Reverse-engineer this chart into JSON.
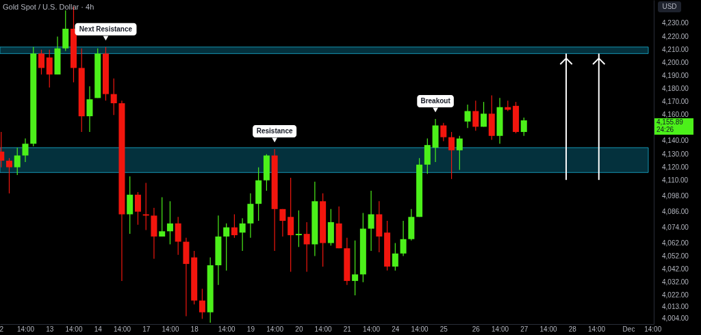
{
  "chart_data": {
    "type": "candlestick",
    "title": "Gold Spot / U.S. Dollar · 4h",
    "ylabel": "USD",
    "categories": [
      "2",
      null,
      null,
      "14:00",
      null,
      null,
      "13",
      null,
      null,
      "14:00",
      null,
      null,
      "14",
      null,
      null,
      "14:00",
      null,
      null,
      "17",
      null,
      null,
      "14:00",
      null,
      null,
      "18",
      null,
      null,
      null,
      "14:00",
      null,
      null,
      "19",
      null,
      null,
      "14:00",
      null,
      null,
      "20",
      null,
      null,
      "14:00",
      null,
      null,
      "21",
      null,
      null,
      "14:00",
      null,
      null,
      "24",
      null,
      null,
      "14:00",
      null,
      null,
      "25",
      null,
      null,
      null,
      "26",
      null,
      null,
      "14:00",
      null,
      null,
      "27",
      null,
      null,
      "14:00",
      null,
      null,
      "28",
      null,
      null,
      "14:00",
      null,
      null,
      null,
      "Dec",
      null,
      null,
      "14:00"
    ],
    "ohlc": [
      [
        4132,
        4147,
        4120,
        4125
      ],
      [
        4125,
        4127,
        4100,
        4120
      ],
      [
        4120,
        4135,
        4114,
        4129
      ],
      [
        4129,
        4142,
        4124,
        4138
      ],
      [
        4138,
        4212,
        4136,
        4207
      ],
      [
        4207,
        4210,
        4191,
        4196
      ],
      [
        4204,
        4210,
        4181,
        4191
      ],
      [
        4191,
        4220,
        4191,
        4211
      ],
      [
        4211,
        4240,
        4209,
        4226
      ],
      [
        4226,
        4243,
        4185,
        4196
      ],
      [
        4196,
        4211,
        4147,
        4159
      ],
      [
        4159,
        4182,
        4147,
        4172
      ],
      [
        4173,
        4211,
        4173,
        4207
      ],
      [
        4207,
        4212,
        4171,
        4176
      ],
      [
        4176,
        4188,
        4160,
        4169
      ],
      [
        4169,
        4171,
        4033,
        4084
      ],
      [
        4084,
        4113,
        4069,
        4099
      ],
      [
        4099,
        4101,
        4076,
        4086
      ],
      [
        4084,
        4108,
        4072,
        4083
      ],
      [
        4083,
        4089,
        4050,
        4067
      ],
      [
        4067,
        4097,
        4067,
        4071
      ],
      [
        4071,
        4094,
        4061,
        4077
      ],
      [
        4077,
        4082,
        4053,
        4063
      ],
      [
        4063,
        4066,
        4006,
        4046
      ],
      [
        4051,
        4056,
        4015,
        4018
      ],
      [
        4018,
        4027,
        4004,
        4009
      ],
      [
        4009,
        4051,
        4001,
        4045
      ],
      [
        4045,
        4083,
        4030,
        4067
      ],
      [
        4067,
        4077,
        4041,
        4074
      ],
      [
        4074,
        4084,
        4066,
        4068
      ],
      [
        4070,
        4081,
        4056,
        4077
      ],
      [
        4077,
        4100,
        4066,
        4092
      ],
      [
        4092,
        4120,
        4079,
        4110
      ],
      [
        4110,
        4130,
        4102,
        4129
      ],
      [
        4129,
        4134,
        4056,
        4088
      ],
      [
        4088,
        4088,
        4067,
        4079
      ],
      [
        4082,
        4112,
        4040,
        4068
      ],
      [
        4068,
        4087,
        4059,
        4069
      ],
      [
        4069,
        4078,
        4040,
        4061
      ],
      [
        4061,
        4109,
        4052,
        4094
      ],
      [
        4094,
        4100,
        4044,
        4062
      ],
      [
        4062,
        4088,
        4060,
        4078
      ],
      [
        4077,
        4090,
        4058,
        4058
      ],
      [
        4058,
        4066,
        4030,
        4033
      ],
      [
        4033,
        4064,
        4022,
        4038
      ],
      [
        4038,
        4085,
        4032,
        4073
      ],
      [
        4073,
        4102,
        4056,
        4084
      ],
      [
        4084,
        4094,
        4055,
        4067
      ],
      [
        4070,
        4079,
        4041,
        4044
      ],
      [
        4044,
        4062,
        4041,
        4054
      ],
      [
        4054,
        4079,
        4052,
        4065
      ],
      [
        4065,
        4088,
        4064,
        4082
      ],
      [
        4082,
        4127,
        4082,
        4122
      ],
      [
        4122,
        4142,
        4115,
        4137
      ],
      [
        4135,
        4157,
        4124,
        4152
      ],
      [
        4152,
        4154,
        4140,
        4143
      ],
      [
        4143,
        4147,
        4111,
        4133
      ],
      [
        4133,
        4144,
        4118,
        4142
      ],
      [
        4155,
        4168,
        4150,
        4163
      ],
      [
        4163,
        4171,
        4148,
        4151
      ],
      [
        4151,
        4170,
        4151,
        4161
      ],
      [
        4161,
        4175,
        4141,
        4144
      ],
      [
        4144,
        4173,
        4138,
        4166
      ],
      [
        4166,
        4171,
        4163,
        4164
      ],
      [
        4167,
        4170,
        4146,
        4147
      ],
      [
        4147,
        4158,
        4144,
        4155.89
      ],
      null,
      null,
      null,
      null,
      null,
      null,
      null,
      null,
      null,
      null,
      null,
      null,
      null,
      null,
      null,
      null
    ],
    "colors": [
      "#f2160e",
      "#f2160e",
      "#4cf01a",
      "#4cf01a",
      "#4cf01a",
      "#f2160e",
      "#f2160e",
      "#4cf01a",
      "#4cf01a",
      "#f2160e",
      "#f2160e",
      "#4cf01a",
      "#4cf01a",
      "#f2160e",
      "#f2160e",
      "#f2160e",
      "#4cf01a",
      "#f2160e",
      "#f2160e",
      "#f2160e",
      "#4cf01a",
      "#4cf01a",
      "#f2160e",
      "#f2160e",
      "#f2160e",
      "#f2160e",
      "#4cf01a",
      "#4cf01a",
      "#4cf01a",
      "#f2160e",
      "#4cf01a",
      "#4cf01a",
      "#4cf01a",
      "#4cf01a",
      "#f2160e",
      "#f2160e",
      "#f2160e",
      "#4cf01a",
      "#f2160e",
      "#4cf01a",
      "#f2160e",
      "#4cf01a",
      "#f2160e",
      "#f2160e",
      "#4cf01a",
      "#4cf01a",
      "#4cf01a",
      "#f2160e",
      "#f2160e",
      "#4cf01a",
      "#4cf01a",
      "#4cf01a",
      "#4cf01a",
      "#4cf01a",
      "#4cf01a",
      "#f2160e",
      "#f2160e",
      "#4cf01a",
      "#4cf01a",
      "#f2160e",
      "#4cf01a",
      "#f2160e",
      "#4cf01a",
      "#f2160e",
      "#f2160e",
      "#4cf01a",
      null,
      null,
      null,
      null,
      null,
      null,
      null,
      null,
      null,
      null,
      null,
      null,
      null,
      null,
      null,
      null
    ],
    "ylim": [
      4000,
      4248
    ],
    "yticks": [
      {
        "value": 4004,
        "label": "4,004.00"
      },
      {
        "value": 4013,
        "label": "4,013.00"
      },
      {
        "value": 4022,
        "label": "4,022.00"
      },
      {
        "value": 4032,
        "label": "4,032.00"
      },
      {
        "value": 4042,
        "label": "4,042.00"
      },
      {
        "value": 4052,
        "label": "4,052.00"
      },
      {
        "value": 4062,
        "label": "4,062.00"
      },
      {
        "value": 4074,
        "label": "4,074.00"
      },
      {
        "value": 4086,
        "label": "4,086.00"
      },
      {
        "value": 4098,
        "label": "4,098.00"
      },
      {
        "value": 4110,
        "label": "4,110.00"
      },
      {
        "value": 4120,
        "label": "4,120.00"
      },
      {
        "value": 4130,
        "label": "4,130.00"
      },
      {
        "value": 4140,
        "label": "4,140.00"
      },
      {
        "value": 4160,
        "label": "4,160.00"
      },
      {
        "value": 4170,
        "label": "4,170.00"
      },
      {
        "value": 4180,
        "label": "4,180.00"
      },
      {
        "value": 4190,
        "label": "4,190.00"
      },
      {
        "value": 4200,
        "label": "4,200.00"
      },
      {
        "value": 4210,
        "label": "4,210.00"
      },
      {
        "value": 4220,
        "label": "4,220.00"
      },
      {
        "value": 4230,
        "label": "4,230.00"
      }
    ],
    "bands": [
      {
        "axis": "y",
        "from": 4207,
        "to": 4212,
        "color": "#04313d"
      },
      {
        "axis": "y",
        "from": 4116,
        "to": 4135,
        "color": "#04313d"
      }
    ],
    "annotations": [
      {
        "text": "Next Resistance",
        "y": 4212
      },
      {
        "text": "Resistance",
        "y": 4134
      },
      {
        "text": "Breakout",
        "y": 4157
      },
      "4,155.89",
      "24:26"
    ],
    "grid": false
  }
}
